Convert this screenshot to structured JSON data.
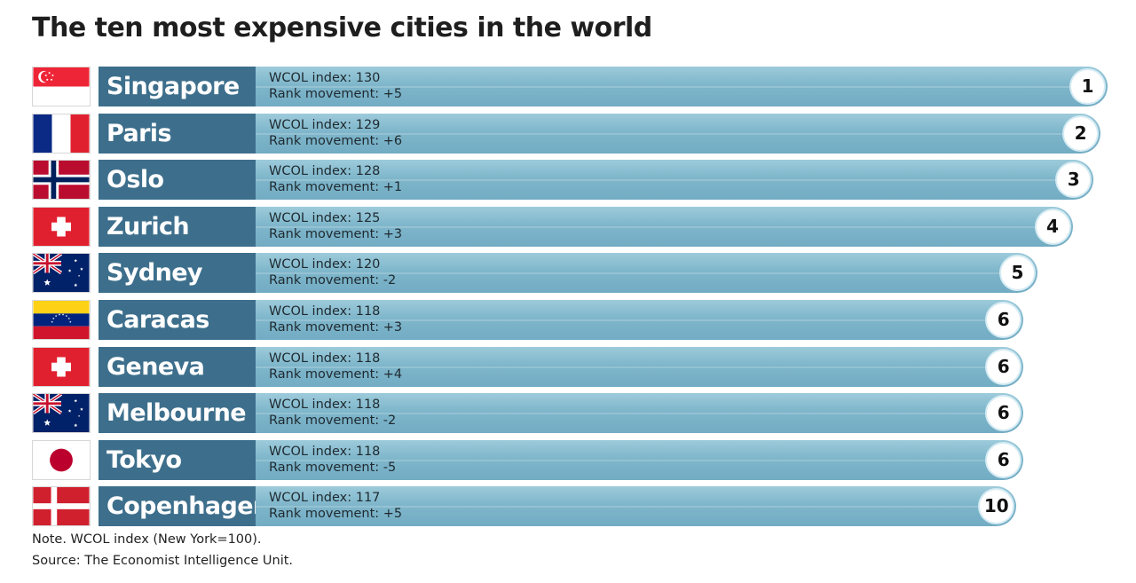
{
  "title": "The ten most expensive cities in the world",
  "note": "Note. WCOL index (New York=100).",
  "source": "Source: The Economist Intelligence Unit.",
  "colors": {
    "city_bg": "#3d6f8c",
    "bar": "#7fb6cb"
  },
  "chart_data": {
    "type": "bar",
    "orientation": "horizontal",
    "title": "The ten most expensive cities in the world",
    "categories": [
      "Singapore",
      "Paris",
      "Oslo",
      "Zurich",
      "Sydney",
      "Caracas",
      "Geneva",
      "Melbourne",
      "Tokyo",
      "Copenhagen"
    ],
    "index_label": "WCOL index: ",
    "movement_label": "Rank movement: ",
    "rows": [
      {
        "city": "Singapore",
        "flag": "singapore-flag",
        "index": 130,
        "movement": "+5",
        "rank": "1"
      },
      {
        "city": "Paris",
        "flag": "france-flag",
        "index": 129,
        "movement": "+6",
        "rank": "2"
      },
      {
        "city": "Oslo",
        "flag": "norway-flag",
        "index": 128,
        "movement": "+1",
        "rank": "3"
      },
      {
        "city": "Zurich",
        "flag": "switzerland-flag",
        "index": 125,
        "movement": "+3",
        "rank": "4"
      },
      {
        "city": "Sydney",
        "flag": "australia-flag",
        "index": 120,
        "movement": "-2",
        "rank": "5"
      },
      {
        "city": "Caracas",
        "flag": "venezuela-flag",
        "index": 118,
        "movement": "+3",
        "rank": "6"
      },
      {
        "city": "Geneva",
        "flag": "switzerland-flag",
        "index": 118,
        "movement": "+4",
        "rank": "6"
      },
      {
        "city": "Melbourne",
        "flag": "australia-flag",
        "index": 118,
        "movement": "-2",
        "rank": "6"
      },
      {
        "city": "Tokyo",
        "flag": "japan-flag",
        "index": 118,
        "movement": "-5",
        "rank": "6"
      },
      {
        "city": "Copenhagen",
        "flag": "denmark-flag",
        "index": 117,
        "movement": "+5",
        "rank": "10"
      }
    ]
  }
}
